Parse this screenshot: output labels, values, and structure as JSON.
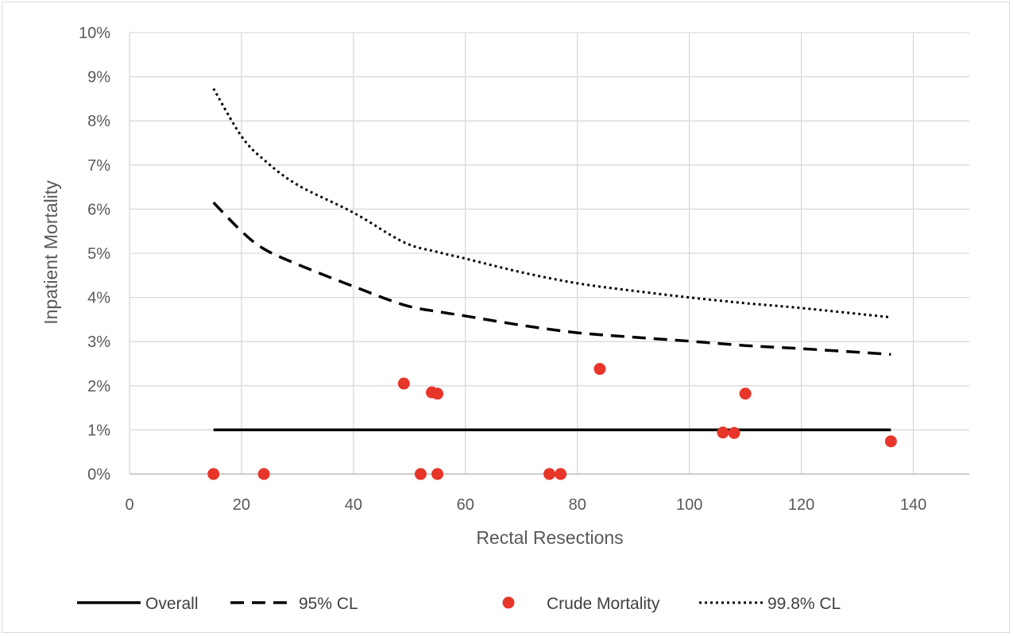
{
  "chart_data": {
    "type": "scatter",
    "title": "",
    "xlabel": "Rectal Resections",
    "ylabel": "Inpatient Mortality",
    "xlim": [
      0,
      150
    ],
    "ylim": [
      0,
      0.1
    ],
    "x_ticks": [
      0,
      20,
      40,
      60,
      80,
      100,
      120,
      140
    ],
    "x_tick_labels": [
      "0",
      "20",
      "40",
      "60",
      "80",
      "100",
      "120",
      "140"
    ],
    "y_ticks": [
      0,
      0.01,
      0.02,
      0.03,
      0.04,
      0.05,
      0.06,
      0.07,
      0.08,
      0.09,
      0.1
    ],
    "y_tick_labels": [
      "0%",
      "1%",
      "2%",
      "3%",
      "4%",
      "5%",
      "6%",
      "7%",
      "8%",
      "9%",
      "10%"
    ],
    "grid": true,
    "legend_position": "bottom",
    "series": [
      {
        "name": "Overall",
        "kind": "line",
        "style": "solid",
        "color": "#000000",
        "x": [
          15,
          136
        ],
        "y": [
          0.01,
          0.01
        ]
      },
      {
        "name": "95% CL",
        "kind": "line",
        "style": "dashed",
        "color": "#000000",
        "x": [
          15,
          20,
          24,
          30,
          40,
          49,
          55,
          60,
          70,
          80,
          90,
          100,
          110,
          120,
          136
        ],
        "y": [
          0.0615,
          0.055,
          0.051,
          0.0475,
          0.0425,
          0.0383,
          0.0368,
          0.0358,
          0.0337,
          0.032,
          0.031,
          0.0301,
          0.0291,
          0.0284,
          0.0271
        ]
      },
      {
        "name": "Crude Mortality",
        "kind": "scatter",
        "color": "#e8352a",
        "x": [
          15,
          24,
          49,
          52,
          54,
          55,
          55,
          75,
          77,
          84,
          106,
          108,
          110,
          136
        ],
        "y": [
          0,
          0,
          0.0205,
          0,
          0.0185,
          0.0182,
          0,
          0,
          0,
          0.0238,
          0.0094,
          0.0093,
          0.0182,
          0.0074
        ]
      },
      {
        "name": "99.8% CL",
        "kind": "line",
        "style": "dotted",
        "color": "#000000",
        "x": [
          15,
          20,
          24,
          30,
          40,
          49,
          55,
          60,
          70,
          80,
          90,
          100,
          110,
          120,
          136
        ],
        "y": [
          0.0873,
          0.0765,
          0.0712,
          0.0655,
          0.0592,
          0.0525,
          0.0503,
          0.0488,
          0.0457,
          0.0432,
          0.0415,
          0.04,
          0.0387,
          0.0376,
          0.0355
        ]
      }
    ]
  }
}
